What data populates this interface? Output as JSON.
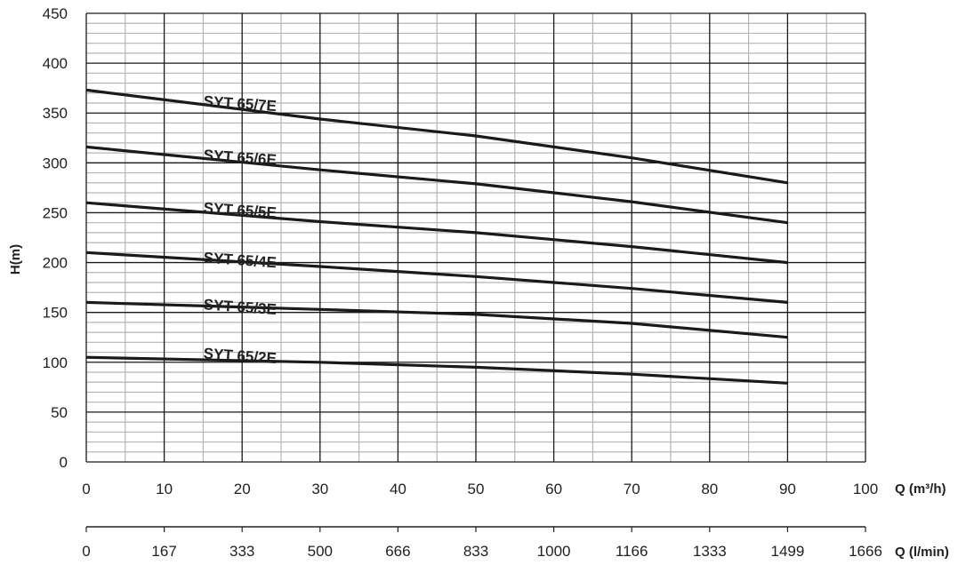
{
  "chart_data": {
    "type": "line",
    "ylabel": "H(m)",
    "xlabel": "Q (m³/h)",
    "xlabel_secondary": "Q (l/min)",
    "xlim": [
      0,
      100
    ],
    "ylim": [
      0,
      450
    ],
    "x_ticks": [
      "0",
      "10",
      "20",
      "30",
      "40",
      "50",
      "60",
      "70",
      "80",
      "90",
      "100"
    ],
    "x_ticks_secondary": [
      "0",
      "167",
      "333",
      "500",
      "666",
      "833",
      "1000",
      "1166",
      "1333",
      "1499",
      "1666"
    ],
    "y_ticks": [
      "0",
      "50",
      "100",
      "150",
      "200",
      "250",
      "300",
      "350",
      "400",
      "450"
    ],
    "grid": true,
    "series": [
      {
        "name": "SYT 65/7E",
        "x": [
          0,
          30,
          50,
          70,
          90
        ],
        "y": [
          373,
          344,
          327,
          305,
          280
        ],
        "label_at": [
          15,
          357
        ]
      },
      {
        "name": "SYT 65/6E",
        "x": [
          0,
          30,
          50,
          70,
          90
        ],
        "y": [
          316,
          293,
          279,
          261,
          240
        ],
        "label_at": [
          15,
          303
        ]
      },
      {
        "name": "SYT 65/5E",
        "x": [
          0,
          30,
          50,
          70,
          90
        ],
        "y": [
          260,
          241,
          230,
          216,
          200
        ],
        "label_at": [
          15,
          250
        ]
      },
      {
        "name": "SYT 65/4E",
        "x": [
          0,
          30,
          50,
          70,
          90
        ],
        "y": [
          210,
          196,
          186,
          174,
          160
        ],
        "label_at": [
          15,
          200
        ]
      },
      {
        "name": "SYT 65/3E",
        "x": [
          0,
          30,
          50,
          70,
          90
        ],
        "y": [
          160,
          153,
          148,
          139,
          125
        ],
        "label_at": [
          15,
          153
        ]
      },
      {
        "name": "SYT 65/2E",
        "x": [
          0,
          30,
          50,
          70,
          90
        ],
        "y": [
          105,
          100,
          95,
          88,
          79
        ],
        "label_at": [
          15,
          104
        ]
      }
    ]
  }
}
